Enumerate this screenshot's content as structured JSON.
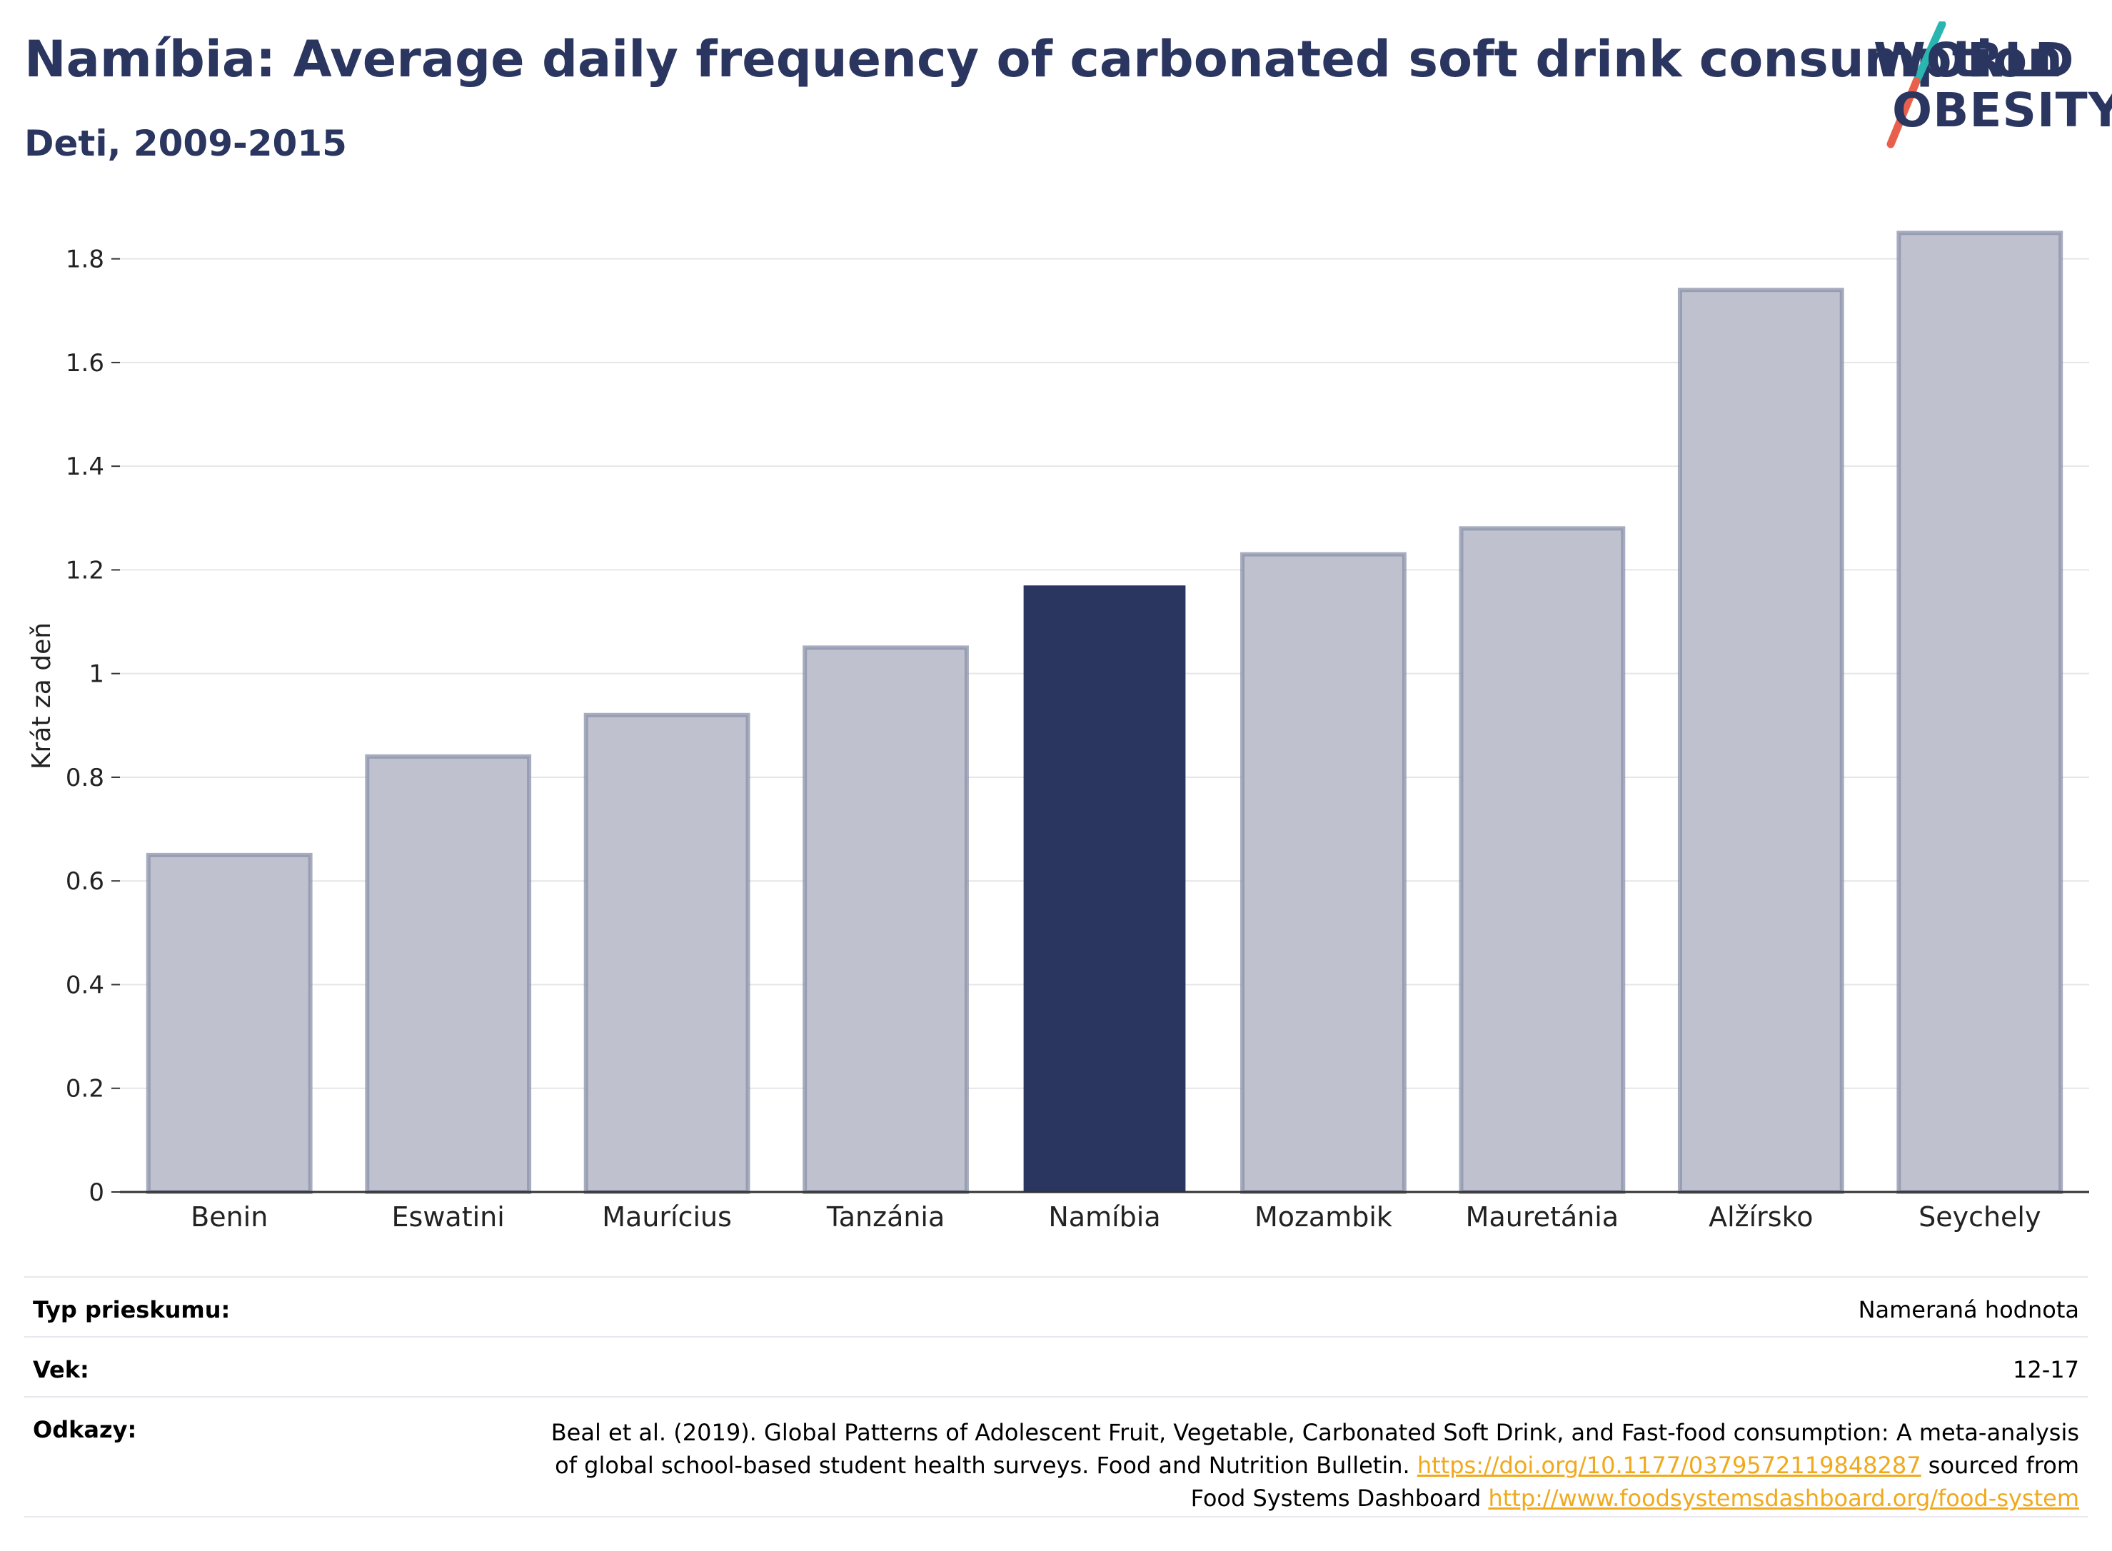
{
  "header": {
    "title": "Namíbia: Average daily frequency of carbonated soft drink consumption",
    "subtitle": "Deti, 2009-2015"
  },
  "logo": {
    "line1": "WORLD",
    "line2": "OBESITY",
    "colors": {
      "text": "#2a3560",
      "slash_top": "#2bb5b0",
      "slash_bottom": "#e8604c"
    }
  },
  "chart_data": {
    "type": "bar",
    "categories": [
      "Benin",
      "Eswatini",
      "Maurícius",
      "Tanzánia",
      "Namíbia",
      "Mozambik",
      "Mauretánia",
      "Alžírsko",
      "Seychely"
    ],
    "values": [
      0.65,
      0.84,
      0.92,
      1.05,
      1.17,
      1.23,
      1.28,
      1.74,
      1.85
    ],
    "highlight": "Namíbia",
    "ylabel": "Krát za deň",
    "ylim": [
      0,
      1.9
    ],
    "yticks": [
      {
        "value": 0,
        "label": "0"
      },
      {
        "value": 0.2,
        "label": "0.2"
      },
      {
        "value": 0.4,
        "label": "0.4"
      },
      {
        "value": 0.6,
        "label": "0.6"
      },
      {
        "value": 0.8,
        "label": "0.8"
      },
      {
        "value": 1,
        "label": "1"
      },
      {
        "value": 1.2,
        "label": "1.2"
      },
      {
        "value": 1.4,
        "label": "1.4"
      },
      {
        "value": 1.6,
        "label": "1.6"
      },
      {
        "value": 1.8,
        "label": "1.8"
      }
    ],
    "grid": true,
    "colors": {
      "highlight": "#2a3560",
      "bar_fill": "#bfc2ce",
      "bar_stroke": "#8a90a8",
      "grid": "#e6e6ea",
      "axis": "#333333"
    }
  },
  "meta": {
    "rows": [
      {
        "label": "Typ prieskumu:",
        "value": "Nameraná hodnota"
      },
      {
        "label": "Vek:",
        "value": "12-17"
      }
    ],
    "references": {
      "label": "Odkazy:",
      "text1": "Beal et al. (2019). Global Patterns of Adolescent Fruit, Vegetable, Carbonated Soft Drink, and Fast-food consumption: A meta-analysis of global school-based student health surveys. Food and Nutrition Bulletin.",
      "link1": "https://doi.org/10.1177/0379572119848287",
      "text2": "sourced from Food Systems Dashboard",
      "link2": "http://www.foodsystemsdashboard.org/food-system"
    }
  }
}
